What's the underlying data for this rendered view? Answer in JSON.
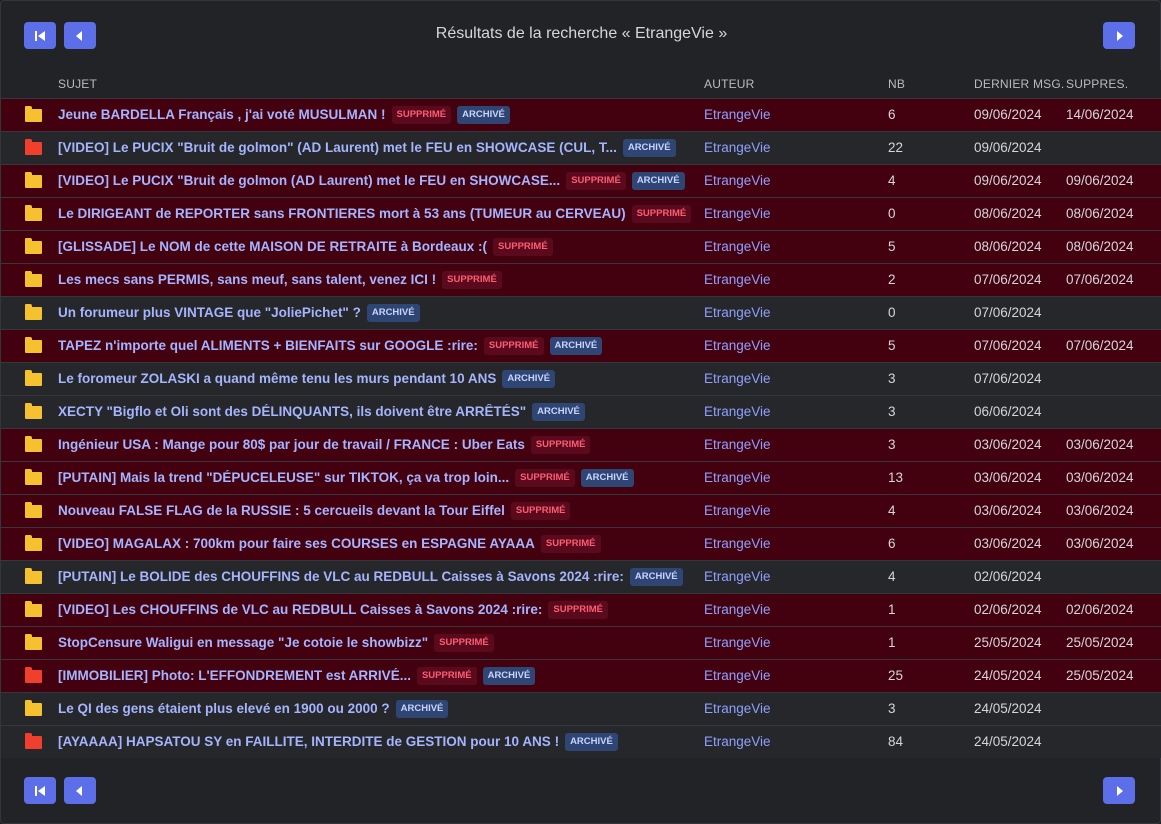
{
  "title": "Résultats de la recherche « EtrangeVie »",
  "headers": {
    "subject": "SUJET",
    "author": "AUTEUR",
    "nb": "NB",
    "last": "DERNIER MSG.",
    "deleted": "SUPPRES."
  },
  "badges": {
    "deleted": "SUPPRIMÉ",
    "archived": "ARCHIVÉ"
  },
  "colors": {
    "accent": "#5c6ee8",
    "deleted_row": "#430110",
    "link": "#a5b4ff",
    "folder_yellow": "#f5c12e",
    "folder_red": "#f0402d"
  },
  "rows": [
    {
      "icon": "yellow",
      "subject": "Jeune BARDELLA Français , j'ai voté MUSULMAN !",
      "deleted": true,
      "archived": true,
      "author": "EtrangeVie",
      "nb": "6",
      "last": "09/06/2024",
      "supp": "14/06/2024"
    },
    {
      "icon": "red",
      "subject": "[VIDEO] Le PUCIX \"Bruit de golmon\" (AD Laurent) met le FEU en SHOWCASE (CUL, T...",
      "deleted": false,
      "archived": true,
      "author": "EtrangeVie",
      "nb": "22",
      "last": "09/06/2024",
      "supp": ""
    },
    {
      "icon": "yellow",
      "subject": "[VIDEO] Le PUCIX \"Bruit de golmon (AD Laurent) met le FEU en SHOWCASE...",
      "deleted": true,
      "archived": true,
      "author": "EtrangeVie",
      "nb": "4",
      "last": "09/06/2024",
      "supp": "09/06/2024"
    },
    {
      "icon": "yellow",
      "subject": "Le DIRIGEANT de REPORTER sans FRONTIERES mort à 53 ans (TUMEUR au CERVEAU)",
      "deleted": true,
      "archived": false,
      "author": "EtrangeVie",
      "nb": "0",
      "last": "08/06/2024",
      "supp": "08/06/2024"
    },
    {
      "icon": "yellow",
      "subject": "[GLISSADE] Le NOM de cette MAISON DE RETRAITE à Bordeaux :(",
      "deleted": true,
      "archived": false,
      "author": "EtrangeVie",
      "nb": "5",
      "last": "08/06/2024",
      "supp": "08/06/2024"
    },
    {
      "icon": "yellow",
      "subject": "Les mecs sans PERMIS, sans meuf, sans talent, venez ICI !",
      "deleted": true,
      "archived": false,
      "author": "EtrangeVie",
      "nb": "2",
      "last": "07/06/2024",
      "supp": "07/06/2024"
    },
    {
      "icon": "yellow",
      "subject": "Un forumeur plus VINTAGE que \"JoliePichet\" ?",
      "deleted": false,
      "archived": true,
      "author": "EtrangeVie",
      "nb": "0",
      "last": "07/06/2024",
      "supp": ""
    },
    {
      "icon": "yellow",
      "subject": "TAPEZ n'importe quel ALIMENTS + BIENFAITS sur GOOGLE :rire:",
      "deleted": true,
      "archived": true,
      "author": "EtrangeVie",
      "nb": "5",
      "last": "07/06/2024",
      "supp": "07/06/2024"
    },
    {
      "icon": "yellow",
      "subject": "Le foromeur ZOLASKI a quand même tenu les murs pendant 10 ANS",
      "deleted": false,
      "archived": true,
      "author": "EtrangeVie",
      "nb": "3",
      "last": "07/06/2024",
      "supp": ""
    },
    {
      "icon": "yellow",
      "subject": "XECTY \"Bigflo et Oli sont des DÉLINQUANTS, ils doivent être ARRÊTÉS\"",
      "deleted": false,
      "archived": true,
      "author": "EtrangeVie",
      "nb": "3",
      "last": "06/06/2024",
      "supp": ""
    },
    {
      "icon": "yellow",
      "subject": "Ingénieur USA : Mange pour 80$ par jour de travail / FRANCE : Uber Eats",
      "deleted": true,
      "archived": false,
      "author": "EtrangeVie",
      "nb": "3",
      "last": "03/06/2024",
      "supp": "03/06/2024"
    },
    {
      "icon": "yellow",
      "subject": "[PUTAIN] Mais la trend \"DÉPUCELEUSE\" sur TIKTOK, ça va trop loin...",
      "deleted": true,
      "archived": true,
      "author": "EtrangeVie",
      "nb": "13",
      "last": "03/06/2024",
      "supp": "03/06/2024"
    },
    {
      "icon": "yellow",
      "subject": "Nouveau FALSE FLAG de la RUSSIE : 5 cercueils devant la Tour Eiffel",
      "deleted": true,
      "archived": false,
      "author": "EtrangeVie",
      "nb": "4",
      "last": "03/06/2024",
      "supp": "03/06/2024"
    },
    {
      "icon": "yellow",
      "subject": "[VIDEO] MAGALAX : 700km pour faire ses COURSES en ESPAGNE AYAAA",
      "deleted": true,
      "archived": false,
      "author": "EtrangeVie",
      "nb": "6",
      "last": "03/06/2024",
      "supp": "03/06/2024"
    },
    {
      "icon": "yellow",
      "subject": "[PUTAIN] Le BOLIDE des CHOUFFINS de VLC au REDBULL Caisses à Savons 2024 :rire:",
      "deleted": false,
      "archived": true,
      "author": "EtrangeVie",
      "nb": "4",
      "last": "02/06/2024",
      "supp": ""
    },
    {
      "icon": "yellow",
      "subject": "[VIDEO] Les CHOUFFINS de VLC au REDBULL Caisses à Savons 2024 :rire:",
      "deleted": true,
      "archived": false,
      "author": "EtrangeVie",
      "nb": "1",
      "last": "02/06/2024",
      "supp": "02/06/2024"
    },
    {
      "icon": "yellow",
      "subject": "StopCensure Waligui en message \"Je cotoie le showbizz\"",
      "deleted": true,
      "archived": false,
      "author": "EtrangeVie",
      "nb": "1",
      "last": "25/05/2024",
      "supp": "25/05/2024"
    },
    {
      "icon": "red",
      "subject": "[IMMOBILIER] Photo: L'EFFONDREMENT est ARRIVÉ...",
      "deleted": true,
      "archived": true,
      "author": "EtrangeVie",
      "nb": "25",
      "last": "24/05/2024",
      "supp": "25/05/2024"
    },
    {
      "icon": "yellow",
      "subject": "Le QI des gens étaient plus elevé en 1900 ou 2000 ?",
      "deleted": false,
      "archived": true,
      "author": "EtrangeVie",
      "nb": "3",
      "last": "24/05/2024",
      "supp": ""
    },
    {
      "icon": "red",
      "subject": "[AYAAAA] HAPSATOU SY en FAILLITE, INTERDITE de GESTION pour 10 ANS !",
      "deleted": false,
      "archived": true,
      "author": "EtrangeVie",
      "nb": "84",
      "last": "24/05/2024",
      "supp": ""
    }
  ]
}
